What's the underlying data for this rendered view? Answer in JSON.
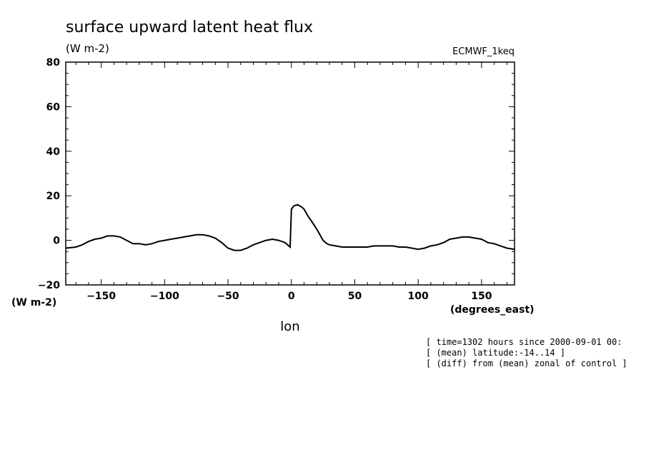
{
  "chart_data": {
    "type": "line",
    "title": "surface upward latent heat flux",
    "units": "(W m-2)",
    "dataset": "ECMWF_1keq",
    "xlabel": "lon",
    "xunits": "(degrees_east)",
    "yunits_left": "(W m-2)",
    "xlim": [
      -178,
      176
    ],
    "ylim": [
      -20,
      80
    ],
    "xticks": [
      -150,
      -100,
      -50,
      0,
      50,
      100,
      150
    ],
    "xtick_labels": [
      "−150",
      "−100",
      "−50",
      "0",
      "50",
      "100",
      "150"
    ],
    "yticks": [
      -20,
      0,
      20,
      40,
      60,
      80
    ],
    "ytick_labels": [
      "−20",
      "0",
      "20",
      "40",
      "60",
      "80"
    ],
    "grid": false,
    "series": [
      {
        "color": "#000000",
        "x": [
          -178,
          -170,
          -165,
          -160,
          -155,
          -150,
          -145,
          -140,
          -135,
          -130,
          -125,
          -120,
          -115,
          -110,
          -105,
          -100,
          -95,
          -90,
          -85,
          -80,
          -75,
          -70,
          -65,
          -60,
          -55,
          -50,
          -45,
          -40,
          -35,
          -30,
          -25,
          -20,
          -15,
          -10,
          -5,
          -1,
          0,
          2,
          5,
          8,
          10,
          13,
          16,
          20,
          23,
          25,
          28,
          30,
          35,
          40,
          45,
          50,
          55,
          60,
          65,
          70,
          75,
          80,
          85,
          90,
          95,
          100,
          105,
          110,
          115,
          120,
          125,
          130,
          135,
          140,
          145,
          150,
          155,
          160,
          165,
          170,
          176
        ],
        "y": [
          -3.5,
          -3,
          -2,
          -0.5,
          0.5,
          1,
          2,
          2,
          1.5,
          0,
          -1.5,
          -1.5,
          -2,
          -1.5,
          -0.5,
          0,
          0.5,
          1,
          1.5,
          2,
          2.5,
          2.5,
          2,
          1,
          -1,
          -3.5,
          -4.5,
          -4.5,
          -3.5,
          -2,
          -1,
          0,
          0.5,
          0,
          -1,
          -3,
          14,
          15.5,
          16,
          15,
          14,
          11,
          8.5,
          5,
          2,
          0,
          -1.5,
          -2,
          -2.5,
          -3,
          -3,
          -3,
          -3,
          -3,
          -2.5,
          -2.5,
          -2.5,
          -2.5,
          -3,
          -3,
          -3.5,
          -4,
          -3.5,
          -2.5,
          -2,
          -1,
          0.5,
          1,
          1.5,
          1.5,
          1,
          0.5,
          -1,
          -1.5,
          -2.5,
          -3.5,
          -4
        ]
      }
    ],
    "annotations": [
      "[ time=1302 hours since 2000-09-01 00:",
      "[ (mean) latitude:-14..14 ]",
      "[ (diff) from (mean) zonal of control ]"
    ]
  }
}
